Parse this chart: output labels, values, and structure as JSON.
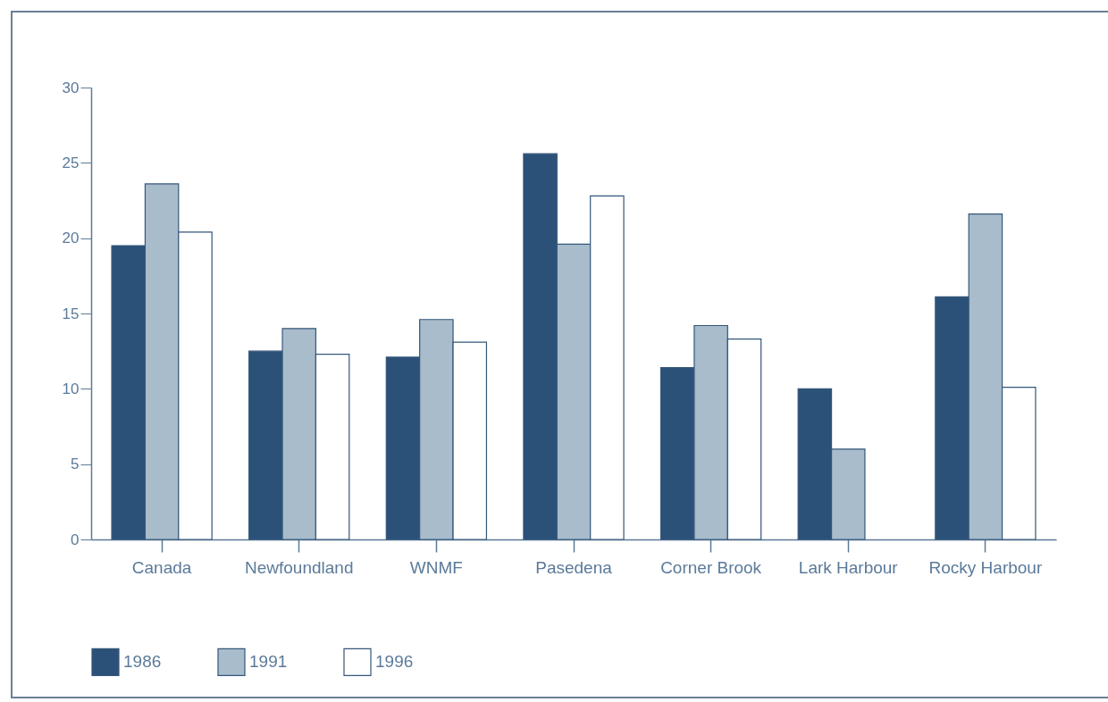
{
  "chart_data": {
    "type": "bar",
    "categories": [
      "Canada",
      "Newfoundland",
      "WNMF",
      "Pasedena",
      "Corner Brook",
      "Lark Harbour",
      "Rocky Harbour"
    ],
    "series": [
      {
        "name": "1986",
        "color": "#2b5179",
        "values": [
          19.5,
          12.5,
          12.1,
          25.6,
          11.4,
          10.0,
          16.1
        ]
      },
      {
        "name": "1991",
        "color": "#a9bccc",
        "values": [
          23.6,
          14.0,
          14.6,
          19.6,
          14.2,
          6.0,
          21.6
        ]
      },
      {
        "name": "1996",
        "color": "#ffffff",
        "values": [
          20.4,
          12.3,
          13.1,
          22.8,
          13.3,
          null,
          10.1
        ]
      }
    ],
    "ylim": [
      0,
      30
    ],
    "yticks": [
      0,
      5,
      10,
      15,
      20,
      25,
      30
    ],
    "grid": false,
    "legend": "bottom"
  }
}
